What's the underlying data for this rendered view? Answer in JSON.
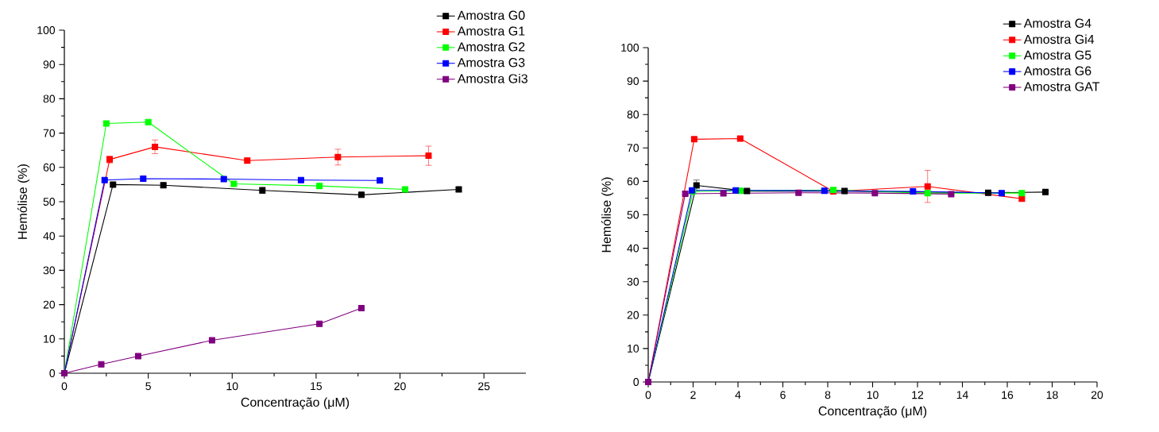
{
  "chart_data": [
    {
      "type": "line",
      "xlabel": "Concentração (μM)",
      "ylabel": "Hemólise (%)",
      "xlim": [
        0,
        27.5
      ],
      "ylim": [
        0,
        100
      ],
      "xticks": [
        0,
        5,
        10,
        15,
        20,
        25
      ],
      "yticks": [
        0,
        10,
        20,
        30,
        40,
        50,
        60,
        70,
        80,
        90,
        100
      ],
      "legend": "top right",
      "marker": "square",
      "line_style": "solid",
      "series": [
        {
          "name": "Amostra G0",
          "color": "#000000",
          "x": [
            0,
            2.9,
            5.9,
            11.8,
            17.7,
            23.5
          ],
          "values": [
            0,
            55,
            54.8,
            53.3,
            52,
            53.6
          ],
          "errors": [
            null,
            null,
            0.6,
            0.9,
            0.6,
            0.6
          ]
        },
        {
          "name": "Amostra G1",
          "color": "#ff0000",
          "x": [
            0,
            2.7,
            5.4,
            10.9,
            16.3,
            21.7
          ],
          "values": [
            0,
            62.3,
            66,
            62,
            63,
            63.4
          ],
          "errors": [
            null,
            1,
            2,
            0.7,
            2.3,
            2.8
          ]
        },
        {
          "name": "Amostra G2",
          "color": "#00ff00",
          "x": [
            0,
            2.5,
            5.0,
            10.1,
            15.2,
            20.3
          ],
          "values": [
            0,
            72.8,
            73.2,
            55.2,
            54.6,
            53.6
          ],
          "errors": [
            null,
            0.6,
            0.6,
            0.6,
            0.6,
            0.6
          ]
        },
        {
          "name": "Amostra G3",
          "color": "#0000ff",
          "x": [
            0,
            2.4,
            4.7,
            9.5,
            14.1,
            18.8
          ],
          "values": [
            0,
            56.3,
            56.7,
            56.6,
            56.3,
            56.2
          ],
          "errors": [
            null,
            null,
            0.6,
            0.6,
            null,
            0.6
          ]
        },
        {
          "name": "Amostra Gi3",
          "color": "#800080",
          "x": [
            0,
            2.2,
            4.4,
            8.8,
            15.2,
            17.7
          ],
          "values": [
            0,
            2.6,
            5,
            9.6,
            14.4,
            19
          ],
          "errors": [
            null,
            null,
            null,
            null,
            null,
            null
          ]
        }
      ]
    },
    {
      "type": "line",
      "xlabel": "Concentração (μM)",
      "ylabel": "Hemólise (%)",
      "xlim": [
        0,
        20
      ],
      "ylim": [
        0,
        100
      ],
      "xticks": [
        0,
        2,
        4,
        6,
        8,
        10,
        12,
        14,
        16,
        18,
        20
      ],
      "yticks": [
        0,
        10,
        20,
        30,
        40,
        50,
        60,
        70,
        80,
        90,
        100
      ],
      "legend": "top right",
      "marker": "square",
      "line_style": "solid",
      "series": [
        {
          "name": "Amostra G4",
          "color": "#000000",
          "x": [
            0,
            2.15,
            4.4,
            8.75,
            15.15,
            17.7
          ],
          "values": [
            0,
            58.8,
            57.1,
            57.1,
            56.6,
            56.8
          ],
          "errors": [
            null,
            1.6,
            0.4,
            0.4,
            0.4,
            0.4
          ]
        },
        {
          "name": "Amostra Gi4",
          "color": "#ff0000",
          "x": [
            0,
            2.05,
            4.1,
            8.25,
            12.45,
            16.65
          ],
          "values": [
            0,
            72.6,
            72.8,
            57,
            58.5,
            54.8
          ],
          "errors": [
            null,
            0.5,
            0.5,
            null,
            4.8,
            0.6
          ]
        },
        {
          "name": "Amostra G5",
          "color": "#00ff00",
          "x": [
            0,
            2.0,
            4.1,
            8.25,
            12.45,
            16.65
          ],
          "values": [
            0,
            57,
            57.2,
            57.4,
            56.5,
            56.5
          ],
          "errors": [
            null,
            null,
            null,
            null,
            null,
            null
          ]
        },
        {
          "name": "Amostra G6",
          "color": "#0000ff",
          "x": [
            0,
            1.95,
            3.9,
            7.85,
            11.8,
            15.75
          ],
          "values": [
            0,
            57.3,
            57.3,
            57.2,
            57,
            56.5
          ],
          "errors": [
            null,
            null,
            null,
            null,
            null,
            0.5
          ]
        },
        {
          "name": "Amostra GAT",
          "color": "#800080",
          "x": [
            0,
            1.65,
            3.35,
            6.7,
            10.1,
            13.5
          ],
          "values": [
            0,
            56.3,
            56.4,
            56.6,
            56.5,
            56.2
          ],
          "errors": [
            null,
            0.5,
            0.5,
            0.4,
            0.4,
            0.4
          ]
        }
      ]
    }
  ]
}
